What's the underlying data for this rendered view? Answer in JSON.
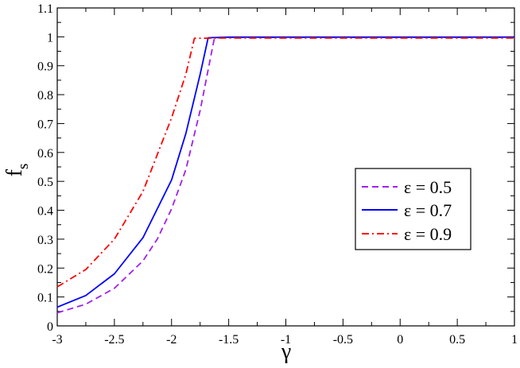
{
  "chart_data": {
    "type": "line",
    "xlabel": "γ",
    "ylabel": "f",
    "ylabel_sub": "s",
    "xlim": [
      -3,
      1
    ],
    "ylim": [
      0,
      1.1
    ],
    "x_ticks": [
      -3,
      -2.5,
      -2,
      -1.5,
      -1,
      -0.5,
      0,
      0.5,
      1
    ],
    "x_tick_labels": [
      "-3",
      "-2.5",
      "-2",
      "-1.5",
      "-1",
      "-0.5",
      "0",
      "0.5",
      "1"
    ],
    "y_ticks": [
      0,
      0.1,
      0.2,
      0.3,
      0.4,
      0.5,
      0.6,
      0.7,
      0.8,
      0.9,
      1,
      1.1
    ],
    "y_tick_labels": [
      "0",
      "0.1",
      "0.2",
      "0.3",
      "0.4",
      "0.5",
      "0.6",
      "0.7",
      "0.8",
      "0.9",
      "1",
      "1.1"
    ],
    "grid": false,
    "legend_position": "right-center",
    "series": [
      {
        "name": "ε = 0.5",
        "color": "#a020f0",
        "dash": "dashed",
        "points": [
          [
            -3,
            0.045
          ],
          [
            -2.75,
            0.075
          ],
          [
            -2.5,
            0.13
          ],
          [
            -2.25,
            0.225
          ],
          [
            -2.125,
            0.3
          ],
          [
            -2.0,
            0.405
          ],
          [
            -1.875,
            0.54
          ],
          [
            -1.75,
            0.745
          ],
          [
            -1.625,
            0.997
          ],
          [
            -1.5,
            0.998
          ],
          [
            -1,
            0.998
          ],
          [
            0,
            0.998
          ],
          [
            1,
            0.998
          ]
        ]
      },
      {
        "name": "ε = 0.7",
        "color": "#0000ff",
        "dash": "solid",
        "points": [
          [
            -3,
            0.065
          ],
          [
            -2.75,
            0.105
          ],
          [
            -2.5,
            0.18
          ],
          [
            -2.25,
            0.305
          ],
          [
            -2.0,
            0.505
          ],
          [
            -1.875,
            0.665
          ],
          [
            -1.75,
            0.87
          ],
          [
            -1.68,
            0.997
          ],
          [
            -1.5,
            0.999
          ],
          [
            -1,
            0.999
          ],
          [
            0,
            0.999
          ],
          [
            1,
            0.999
          ]
        ]
      },
      {
        "name": "ε = 0.9",
        "color": "#ff0000",
        "dash": "dashdot",
        "points": [
          [
            -3,
            0.135
          ],
          [
            -2.75,
            0.195
          ],
          [
            -2.5,
            0.3
          ],
          [
            -2.25,
            0.465
          ],
          [
            -2.0,
            0.72
          ],
          [
            -1.875,
            0.87
          ],
          [
            -1.8,
            0.995
          ],
          [
            -1.5,
            0.996
          ],
          [
            -1,
            0.996
          ],
          [
            0,
            0.996
          ],
          [
            1,
            0.996
          ]
        ]
      }
    ]
  }
}
